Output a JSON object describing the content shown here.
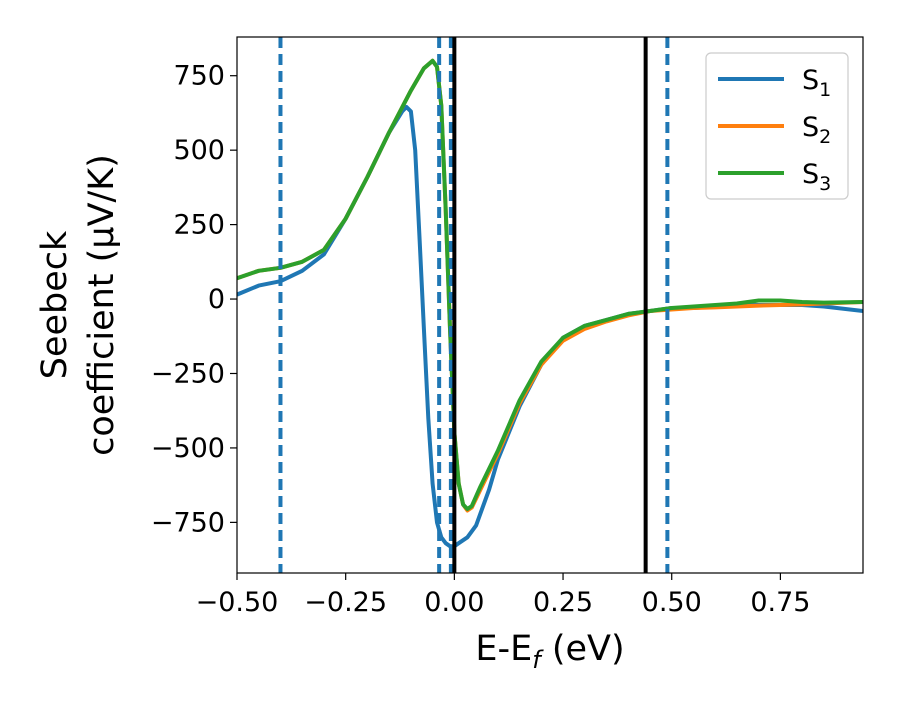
{
  "chart_data": {
    "type": "line",
    "xlabel_main": "E-E",
    "xlabel_sub": "f",
    "xlabel_unit": " (eV)",
    "ylabel_line1": "Seebeck",
    "ylabel_line2": "coefficient  (μV/K)",
    "xlim": [
      -0.5,
      0.94
    ],
    "ylim": [
      -920,
      880
    ],
    "x_ticks": [
      -0.5,
      -0.25,
      0.0,
      0.25,
      0.5,
      0.75
    ],
    "x_tick_labels": [
      "−0.50",
      "−0.25",
      "0.00",
      "0.25",
      "0.50",
      "0.75"
    ],
    "y_ticks": [
      750,
      500,
      250,
      0,
      -250,
      -500,
      -750
    ],
    "y_tick_labels": [
      "750",
      "500",
      "250",
      "0",
      "−250",
      "−500",
      "−750"
    ],
    "legend_position": "top-right",
    "vertical_lines": [
      {
        "x": -0.4,
        "style": "dashed",
        "color": "#1f77b4"
      },
      {
        "x": -0.035,
        "style": "dashed",
        "color": "#1f77b4"
      },
      {
        "x": -0.008,
        "style": "dashed",
        "color": "#1f77b4"
      },
      {
        "x": 0.49,
        "style": "dashed",
        "color": "#1f77b4"
      },
      {
        "x": 0.0,
        "style": "solid",
        "color": "#000000"
      },
      {
        "x": 0.44,
        "style": "solid",
        "color": "#000000"
      }
    ],
    "series": [
      {
        "name": "S",
        "subscript": "1",
        "color": "#1f77b4",
        "points": [
          [
            -0.5,
            15
          ],
          [
            -0.45,
            45
          ],
          [
            -0.4,
            60
          ],
          [
            -0.35,
            95
          ],
          [
            -0.3,
            150
          ],
          [
            -0.25,
            270
          ],
          [
            -0.2,
            410
          ],
          [
            -0.15,
            560
          ],
          [
            -0.12,
            630
          ],
          [
            -0.11,
            645
          ],
          [
            -0.1,
            630
          ],
          [
            -0.09,
            500
          ],
          [
            -0.08,
            200
          ],
          [
            -0.07,
            -100
          ],
          [
            -0.06,
            -400
          ],
          [
            -0.05,
            -620
          ],
          [
            -0.04,
            -750
          ],
          [
            -0.03,
            -800
          ],
          [
            -0.02,
            -820
          ],
          [
            -0.01,
            -830
          ],
          [
            0.0,
            -830
          ],
          [
            0.01,
            -820
          ],
          [
            0.03,
            -800
          ],
          [
            0.05,
            -760
          ],
          [
            0.08,
            -640
          ],
          [
            0.1,
            -540
          ],
          [
            0.15,
            -360
          ],
          [
            0.2,
            -220
          ],
          [
            0.25,
            -130
          ],
          [
            0.3,
            -90
          ],
          [
            0.35,
            -70
          ],
          [
            0.4,
            -50
          ],
          [
            0.45,
            -40
          ],
          [
            0.5,
            -30
          ],
          [
            0.55,
            -30
          ],
          [
            0.6,
            -25
          ],
          [
            0.65,
            -20
          ],
          [
            0.7,
            -20
          ],
          [
            0.75,
            -20
          ],
          [
            0.8,
            -20
          ],
          [
            0.85,
            -25
          ],
          [
            0.94,
            -40
          ]
        ]
      },
      {
        "name": "S",
        "subscript": "2",
        "color": "#ff7f0e",
        "points": [
          [
            -0.5,
            70
          ],
          [
            -0.45,
            95
          ],
          [
            -0.4,
            105
          ],
          [
            -0.35,
            125
          ],
          [
            -0.3,
            165
          ],
          [
            -0.25,
            270
          ],
          [
            -0.2,
            410
          ],
          [
            -0.15,
            560
          ],
          [
            -0.1,
            700
          ],
          [
            -0.07,
            775
          ],
          [
            -0.05,
            800
          ],
          [
            -0.04,
            780
          ],
          [
            -0.03,
            650
          ],
          [
            -0.02,
            300
          ],
          [
            -0.01,
            -100
          ],
          [
            0.0,
            -450
          ],
          [
            0.01,
            -620
          ],
          [
            0.02,
            -690
          ],
          [
            0.03,
            -710
          ],
          [
            0.04,
            -700
          ],
          [
            0.06,
            -640
          ],
          [
            0.1,
            -520
          ],
          [
            0.15,
            -350
          ],
          [
            0.2,
            -220
          ],
          [
            0.25,
            -140
          ],
          [
            0.3,
            -100
          ],
          [
            0.35,
            -75
          ],
          [
            0.4,
            -55
          ],
          [
            0.45,
            -40
          ],
          [
            0.5,
            -35
          ],
          [
            0.55,
            -30
          ],
          [
            0.6,
            -28
          ],
          [
            0.65,
            -25
          ],
          [
            0.7,
            -22
          ],
          [
            0.75,
            -20
          ],
          [
            0.8,
            -18
          ],
          [
            0.85,
            -15
          ],
          [
            0.94,
            -10
          ]
        ]
      },
      {
        "name": "S",
        "subscript": "3",
        "color": "#2ca02c",
        "points": [
          [
            -0.5,
            70
          ],
          [
            -0.45,
            95
          ],
          [
            -0.4,
            105
          ],
          [
            -0.35,
            125
          ],
          [
            -0.3,
            165
          ],
          [
            -0.25,
            270
          ],
          [
            -0.2,
            410
          ],
          [
            -0.15,
            560
          ],
          [
            -0.1,
            700
          ],
          [
            -0.07,
            775
          ],
          [
            -0.05,
            800
          ],
          [
            -0.04,
            780
          ],
          [
            -0.03,
            650
          ],
          [
            -0.02,
            300
          ],
          [
            -0.01,
            -100
          ],
          [
            0.0,
            -450
          ],
          [
            0.01,
            -620
          ],
          [
            0.02,
            -690
          ],
          [
            0.03,
            -705
          ],
          [
            0.04,
            -695
          ],
          [
            0.06,
            -630
          ],
          [
            0.1,
            -510
          ],
          [
            0.15,
            -340
          ],
          [
            0.2,
            -210
          ],
          [
            0.25,
            -130
          ],
          [
            0.3,
            -90
          ],
          [
            0.35,
            -70
          ],
          [
            0.4,
            -50
          ],
          [
            0.45,
            -40
          ],
          [
            0.5,
            -30
          ],
          [
            0.55,
            -25
          ],
          [
            0.6,
            -20
          ],
          [
            0.65,
            -15
          ],
          [
            0.7,
            -5
          ],
          [
            0.75,
            -5
          ],
          [
            0.8,
            -10
          ],
          [
            0.85,
            -12
          ],
          [
            0.94,
            -10
          ]
        ]
      }
    ]
  }
}
